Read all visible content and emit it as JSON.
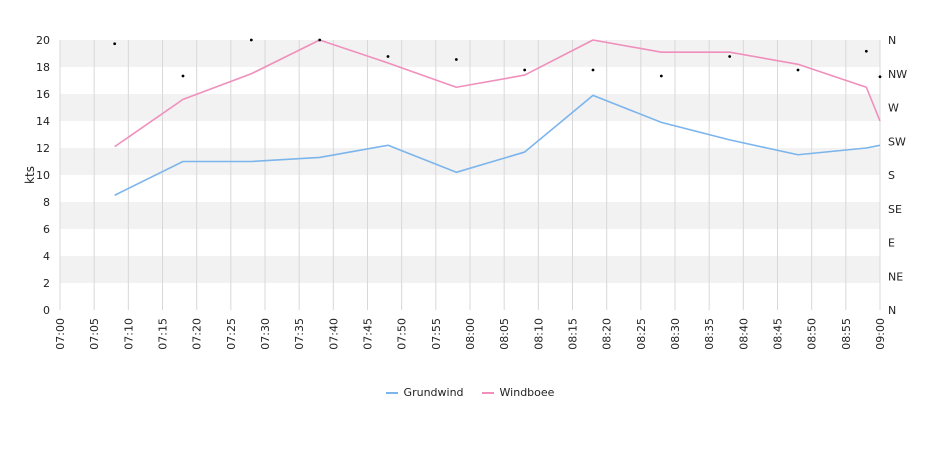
{
  "chart_data": {
    "type": "line",
    "ylabel": "kts",
    "ylim": [
      0,
      20
    ],
    "yticks": [
      0,
      2,
      4,
      6,
      8,
      10,
      12,
      14,
      16,
      18,
      20
    ],
    "xlim": [
      "07:00",
      "09:00"
    ],
    "xticks": [
      "07:00",
      "07:05",
      "07:10",
      "07:15",
      "07:20",
      "07:25",
      "07:30",
      "07:35",
      "07:40",
      "07:45",
      "07:50",
      "07:55",
      "08:00",
      "08:05",
      "08:10",
      "08:15",
      "08:20",
      "08:25",
      "08:30",
      "08:35",
      "08:40",
      "08:45",
      "08:50",
      "08:55",
      "09:00"
    ],
    "right_axis": {
      "labels": [
        "N",
        "NE",
        "E",
        "SE",
        "S",
        "SW",
        "W",
        "NW",
        "N"
      ],
      "range_degrees": [
        0,
        360
      ]
    },
    "series": [
      {
        "name": "Grundwind",
        "color": "#7cb5ec",
        "x": [
          "07:08",
          "07:18",
          "07:28",
          "07:38",
          "07:48",
          "07:58",
          "08:08",
          "08:18",
          "08:28",
          "08:38",
          "08:48",
          "08:58",
          "09:00"
        ],
        "values": [
          8.5,
          11.0,
          11.0,
          11.3,
          12.2,
          10.2,
          11.7,
          15.9,
          13.9,
          12.6,
          11.5,
          12.0,
          12.2
        ]
      },
      {
        "name": "Windboee",
        "color": "#f08fbc",
        "x": [
          "07:08",
          "07:18",
          "07:28",
          "07:38",
          "07:48",
          "07:58",
          "08:08",
          "08:18",
          "08:28",
          "08:38",
          "08:48",
          "08:58",
          "09:00"
        ],
        "values": [
          12.1,
          15.6,
          17.5,
          20.0,
          18.3,
          16.5,
          17.4,
          20.0,
          19.1,
          19.1,
          18.2,
          16.5,
          14.0
        ]
      }
    ],
    "direction_markers": {
      "x": [
        "07:08",
        "07:18",
        "07:28",
        "07:38",
        "07:48",
        "07:58",
        "08:08",
        "08:18",
        "08:28",
        "08:38",
        "08:48",
        "08:58",
        "09:00"
      ],
      "degrees": [
        355,
        312,
        360,
        360,
        338,
        334,
        320,
        320,
        312,
        338,
        320,
        345,
        311
      ]
    },
    "grid": true,
    "legend_position": "bottom-center"
  }
}
